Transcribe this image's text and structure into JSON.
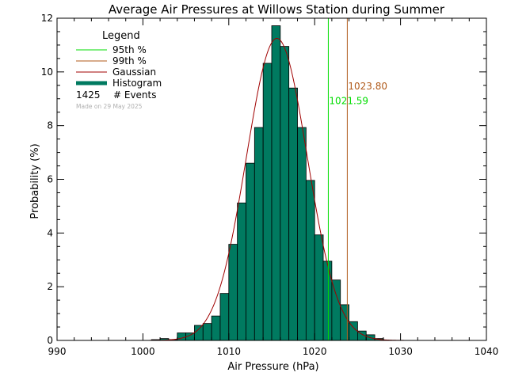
{
  "chart_data": {
    "type": "bar",
    "title": "Average Air Pressures at Willows Station during Summer",
    "xlabel": "Air Pressure (hPa)",
    "ylabel": "Probability (%)",
    "xlim": [
      990,
      1040
    ],
    "ylim": [
      0,
      12
    ],
    "x_ticks": [
      "990",
      "1000",
      "1010",
      "1020",
      "1030",
      "1040"
    ],
    "y_ticks": [
      "0",
      "2",
      "4",
      "6",
      "8",
      "10",
      "12"
    ],
    "grid": false,
    "legend_position": "top-left",
    "legend": {
      "title": "Legend",
      "entries": [
        {
          "label": "95th %",
          "color": "#00dd00",
          "style": "line"
        },
        {
          "label": "99th %",
          "color": "#b05a1a",
          "style": "line"
        },
        {
          "label": "Gaussian",
          "color": "#a00000",
          "style": "line"
        },
        {
          "label": "Histogram",
          "color": "#007a60",
          "style": "thick"
        }
      ],
      "event_count": "1425",
      "event_label": "# Events"
    },
    "made_on": "Made on 29 May 2025",
    "histogram": {
      "bin_width": 1,
      "bin_starts": [
        1001,
        1002,
        1003,
        1004,
        1005,
        1006,
        1007,
        1008,
        1009,
        1010,
        1011,
        1012,
        1013,
        1014,
        1015,
        1016,
        1017,
        1018,
        1019,
        1020,
        1021,
        1022,
        1023,
        1024,
        1025,
        1026,
        1027
      ],
      "values": [
        0.03,
        0.07,
        0.03,
        0.28,
        0.28,
        0.56,
        0.63,
        0.91,
        1.75,
        3.58,
        5.12,
        6.6,
        7.93,
        10.32,
        11.72,
        10.95,
        9.4,
        7.93,
        5.96,
        3.93,
        2.95,
        2.25,
        1.33,
        0.7,
        0.35,
        0.21,
        0.07
      ],
      "color": "#007a60"
    },
    "gaussian": {
      "mean": 1015.6,
      "sigma": 3.55,
      "peak": 11.25,
      "color": "#a00000"
    },
    "percentile_95": {
      "value": 1021.59,
      "label": "1021.59",
      "color": "#00dd00"
    },
    "percentile_99": {
      "value": 1023.8,
      "label": "1023.80",
      "color": "#b05a1a"
    }
  }
}
